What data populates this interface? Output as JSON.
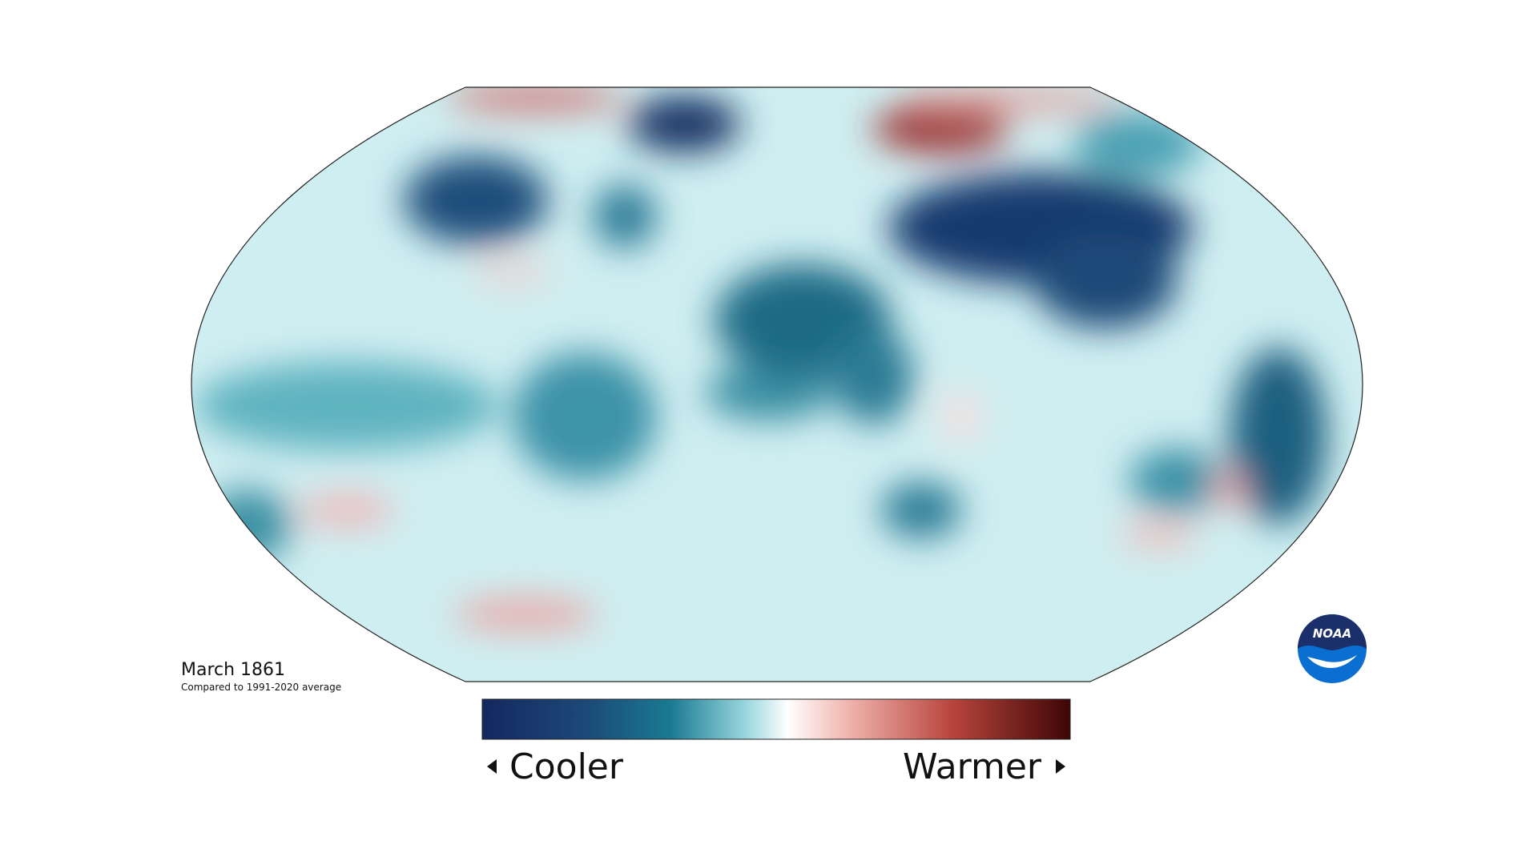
{
  "map": {
    "title": "March 1861",
    "subtitle": "Compared to 1991-2020 average"
  },
  "legend": {
    "low_label": "Cooler",
    "high_label": "Warmer"
  },
  "logo": {
    "text": "NOAA"
  }
}
